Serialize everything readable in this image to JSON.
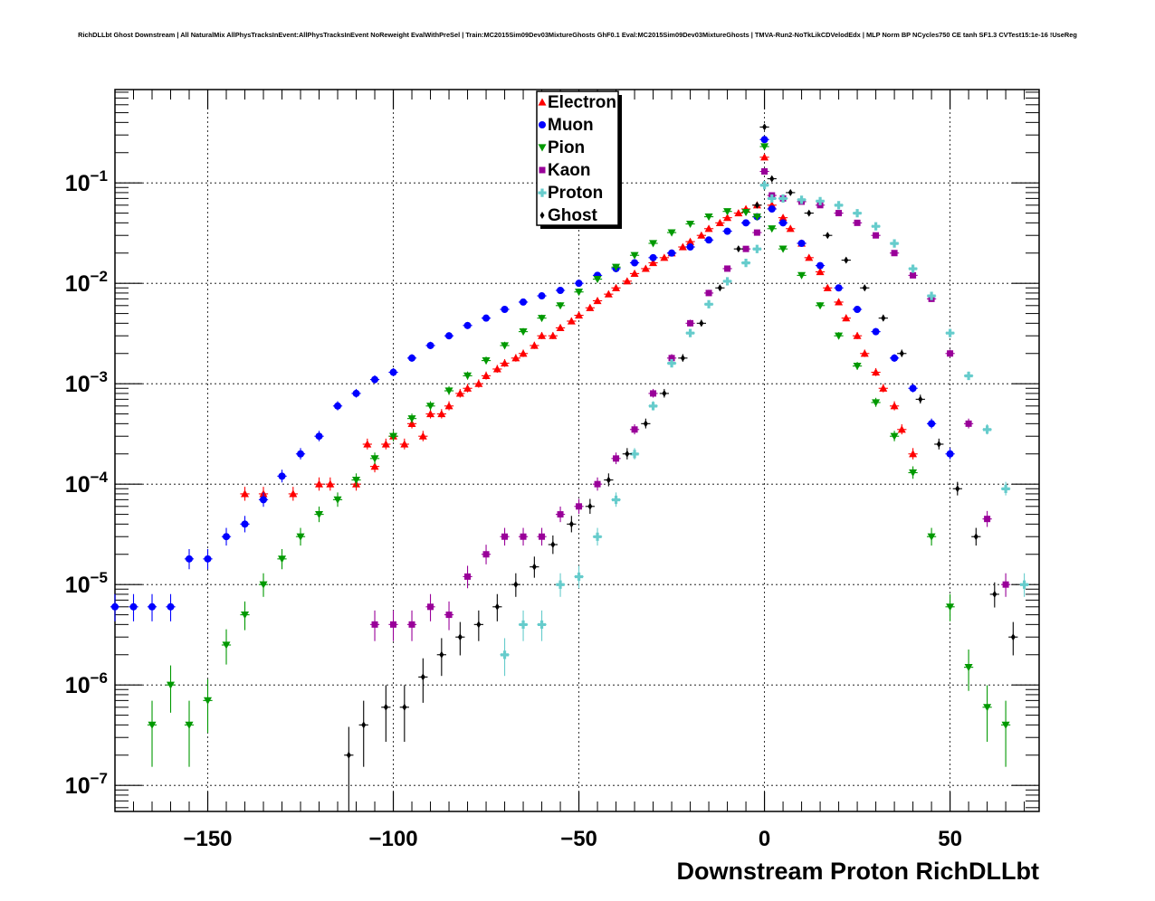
{
  "chart_data": {
    "type": "scatter",
    "title": "RichDLLbt Ghost Downstream | All NaturalMix AllPhysTracksInEvent:AllPhysTracksInEvent NoReweight EvalWithPreSel | Train:MC2015Sim09Dev03MixtureGhosts GhF0.1 Eval:MC2015Sim09Dev03MixtureGhosts | TMVA-Run2-NoTkLikCDVelodEdx | MLP Norm BP NCycles750 CE tanh SF1.3 CVTest15:1e-16 !UseReg",
    "xlabel": "Downstream Proton RichDLLbt",
    "ylabel": "",
    "xlim": [
      -175,
      74
    ],
    "ylim": [
      5.5e-08,
      0.85
    ],
    "yscale": "log",
    "grid": true,
    "legend_position": "top-center",
    "x_ticks": [
      -150,
      -100,
      -50,
      0,
      50
    ],
    "x_tick_labels": [
      "−150",
      "−100",
      "−50",
      "0",
      "50"
    ],
    "y_ticks": [
      1e-07,
      1e-06,
      1e-05,
      0.0001,
      0.001,
      0.01,
      0.1
    ],
    "y_tick_mantissa": "10",
    "y_tick_exponents": [
      "−7",
      "−6",
      "−5",
      "−4",
      "−3",
      "−2",
      "−1"
    ],
    "series": [
      {
        "name": "Electron",
        "color": "#ff0000",
        "marker": "triangle-up",
        "x": [
          -140,
          -135,
          -127,
          -120,
          -117,
          -110,
          -107,
          -105,
          -102,
          -100,
          -97,
          -95,
          -92,
          -90,
          -87,
          -85,
          -82,
          -80,
          -77,
          -75,
          -72,
          -70,
          -67,
          -65,
          -62,
          -60,
          -57,
          -55,
          -52,
          -50,
          -47,
          -45,
          -42,
          -40,
          -37,
          -35,
          -32,
          -30,
          -27,
          -25,
          -22,
          -20,
          -17,
          -15,
          -12,
          -10,
          -7,
          -5,
          -2,
          0,
          2,
          5,
          7,
          10,
          12,
          15,
          17,
          20,
          22,
          25,
          27,
          30,
          32,
          35,
          37,
          40
        ],
        "y": [
          8e-05,
          8e-05,
          8e-05,
          0.0001,
          0.0001,
          0.0001,
          0.00025,
          0.00015,
          0.00025,
          0.0003,
          0.00025,
          0.0004,
          0.0003,
          0.0005,
          0.0005,
          0.0006,
          0.0008,
          0.0009,
          0.001,
          0.0012,
          0.0014,
          0.0016,
          0.0018,
          0.002,
          0.0024,
          0.003,
          0.003,
          0.0036,
          0.0042,
          0.0048,
          0.0057,
          0.0067,
          0.0078,
          0.009,
          0.0105,
          0.0125,
          0.014,
          0.016,
          0.018,
          0.02,
          0.023,
          0.026,
          0.03,
          0.035,
          0.04,
          0.045,
          0.05,
          0.055,
          0.06,
          0.18,
          0.06,
          0.045,
          0.035,
          0.025,
          0.018,
          0.013,
          0.009,
          0.0065,
          0.0045,
          0.003,
          0.002,
          0.0013,
          0.0009,
          0.0006,
          0.00035,
          0.0002
        ]
      },
      {
        "name": "Muon",
        "color": "#0000ff",
        "marker": "circle",
        "x": [
          -175,
          -170,
          -165,
          -160,
          -155,
          -150,
          -145,
          -140,
          -135,
          -130,
          -125,
          -120,
          -115,
          -110,
          -105,
          -100,
          -95,
          -90,
          -85,
          -80,
          -75,
          -70,
          -65,
          -60,
          -55,
          -50,
          -45,
          -40,
          -35,
          -30,
          -25,
          -20,
          -15,
          -10,
          -5,
          -2,
          0,
          2,
          5,
          10,
          15,
          20,
          25,
          30,
          35,
          40,
          45,
          50
        ],
        "y": [
          6e-06,
          6e-06,
          6e-06,
          6e-06,
          1.8e-05,
          1.8e-05,
          3e-05,
          4e-05,
          7e-05,
          0.00012,
          0.0002,
          0.0003,
          0.0006,
          0.0008,
          0.0011,
          0.0013,
          0.0018,
          0.0024,
          0.003,
          0.0038,
          0.0045,
          0.0055,
          0.0065,
          0.0075,
          0.0085,
          0.01,
          0.012,
          0.014,
          0.016,
          0.018,
          0.02,
          0.023,
          0.027,
          0.033,
          0.04,
          0.046,
          0.27,
          0.055,
          0.04,
          0.025,
          0.015,
          0.009,
          0.0055,
          0.0033,
          0.0018,
          0.0009,
          0.0004,
          0.0002
        ]
      },
      {
        "name": "Pion",
        "color": "#009900",
        "marker": "triangle-down",
        "x": [
          -165,
          -160,
          -155,
          -150,
          -145,
          -140,
          -135,
          -130,
          -125,
          -120,
          -115,
          -110,
          -105,
          -100,
          -95,
          -90,
          -85,
          -80,
          -75,
          -70,
          -65,
          -60,
          -55,
          -50,
          -45,
          -40,
          -35,
          -30,
          -25,
          -20,
          -15,
          -10,
          -5,
          -2,
          0,
          2,
          5,
          10,
          15,
          20,
          25,
          30,
          35,
          40,
          45,
          50,
          55,
          60,
          65
        ],
        "y": [
          4e-07,
          1e-06,
          4e-07,
          7e-07,
          2.5e-06,
          5e-06,
          1e-05,
          1.8e-05,
          3e-05,
          5e-05,
          7e-05,
          0.00011,
          0.00018,
          0.0003,
          0.00045,
          0.0006,
          0.00085,
          0.0012,
          0.0017,
          0.0024,
          0.0033,
          0.0045,
          0.006,
          0.0082,
          0.011,
          0.0145,
          0.019,
          0.025,
          0.032,
          0.039,
          0.046,
          0.052,
          0.051,
          0.046,
          0.23,
          0.035,
          0.022,
          0.012,
          0.006,
          0.003,
          0.0015,
          0.00065,
          0.0003,
          0.00013,
          3e-05,
          6e-06,
          1.5e-06,
          6e-07,
          4e-07
        ]
      },
      {
        "name": "Kaon",
        "color": "#990099",
        "marker": "square",
        "x": [
          -105,
          -100,
          -95,
          -90,
          -85,
          -80,
          -75,
          -70,
          -65,
          -60,
          -55,
          -50,
          -45,
          -40,
          -35,
          -30,
          -25,
          -20,
          -15,
          -10,
          -5,
          -2,
          0,
          2,
          5,
          10,
          15,
          20,
          25,
          30,
          35,
          40,
          45,
          50,
          55,
          60,
          65
        ],
        "y": [
          4e-06,
          4e-06,
          4e-06,
          6e-06,
          5e-06,
          1.2e-05,
          2e-05,
          3e-05,
          3e-05,
          3e-05,
          5e-05,
          6e-05,
          0.0001,
          0.00018,
          0.00035,
          0.0008,
          0.0018,
          0.004,
          0.008,
          0.014,
          0.022,
          0.032,
          0.13,
          0.075,
          0.07,
          0.065,
          0.06,
          0.05,
          0.04,
          0.03,
          0.02,
          0.012,
          0.007,
          0.002,
          0.0004,
          4.5e-05,
          1e-05
        ]
      },
      {
        "name": "Proton",
        "color": "#66cccc",
        "marker": "cross",
        "x": [
          -70,
          -65,
          -60,
          -55,
          -50,
          -45,
          -40,
          -35,
          -30,
          -25,
          -20,
          -15,
          -10,
          -5,
          -2,
          0,
          2,
          5,
          10,
          15,
          20,
          25,
          30,
          35,
          40,
          45,
          50,
          55,
          60,
          65,
          70
        ],
        "y": [
          2e-06,
          4e-06,
          4e-06,
          1e-05,
          1.2e-05,
          3e-05,
          7e-05,
          0.0002,
          0.0006,
          0.0016,
          0.0032,
          0.0062,
          0.0105,
          0.016,
          0.022,
          0.095,
          0.07,
          0.07,
          0.068,
          0.066,
          0.06,
          0.05,
          0.037,
          0.025,
          0.014,
          0.0075,
          0.0032,
          0.0012,
          0.00035,
          9e-05,
          1e-05
        ]
      },
      {
        "name": "Ghost",
        "color": "#000000",
        "marker": "diamond",
        "x": [
          -112,
          -108,
          -102,
          -97,
          -92,
          -87,
          -82,
          -77,
          -72,
          -67,
          -62,
          -57,
          -52,
          -47,
          -42,
          -37,
          -32,
          -27,
          -22,
          -17,
          -12,
          -7,
          -2,
          0,
          2,
          7,
          12,
          17,
          22,
          27,
          32,
          37,
          42,
          47,
          52,
          57,
          62,
          67
        ],
        "y": [
          2e-07,
          4e-07,
          6e-07,
          6e-07,
          1.2e-06,
          2e-06,
          3e-06,
          4e-06,
          6e-06,
          1e-05,
          1.5e-05,
          2.5e-05,
          4e-05,
          6e-05,
          0.00011,
          0.0002,
          0.0004,
          0.0008,
          0.0018,
          0.004,
          0.009,
          0.022,
          0.06,
          0.36,
          0.11,
          0.08,
          0.05,
          0.03,
          0.017,
          0.009,
          0.0045,
          0.002,
          0.0007,
          0.00025,
          9e-05,
          3e-05,
          8e-06,
          3e-06
        ]
      }
    ]
  }
}
